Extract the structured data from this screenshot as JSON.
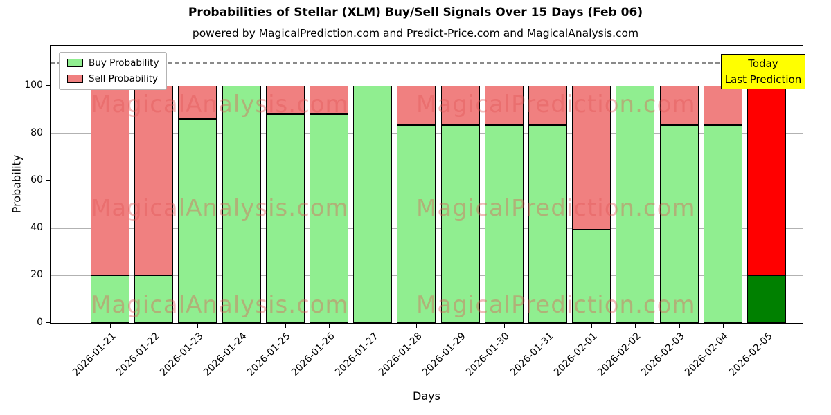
{
  "chart_data": {
    "type": "bar",
    "stacked": true,
    "title": "Probabilities of Stellar (XLM) Buy/Sell Signals Over 15 Days (Feb 06)",
    "subtitle": "powered by MagicalPrediction.com and Predict-Price.com and MagicalAnalysis.com",
    "xlabel": "Days",
    "ylabel": "Probability",
    "ylim": [
      0,
      117
    ],
    "yticks": [
      0,
      20,
      40,
      60,
      80,
      100
    ],
    "grid": true,
    "legend_position": "upper left",
    "dashed_line_y": 110,
    "categories": [
      "2026-01-21",
      "2026-01-22",
      "2026-01-23",
      "2026-01-24",
      "2026-01-25",
      "2026-01-26",
      "2026-01-27",
      "2026-01-28",
      "2026-01-29",
      "2026-01-30",
      "2026-01-31",
      "2026-02-01",
      "2026-02-02",
      "2026-02-03",
      "2026-02-04",
      "2026-02-05"
    ],
    "series": [
      {
        "name": "Buy Probability",
        "color": "#90EE90",
        "values": [
          20,
          20,
          86,
          100,
          88,
          88,
          100,
          83.33,
          83.33,
          83.33,
          83.33,
          39.5,
          100,
          83.33,
          83.33,
          20
        ]
      },
      {
        "name": "Sell Probability",
        "color": "#F08080",
        "values": [
          80,
          80,
          14,
          0,
          12,
          12,
          0,
          16.67,
          16.67,
          16.67,
          16.67,
          60.5,
          0,
          16.67,
          16.67,
          80
        ]
      }
    ],
    "today_bar": {
      "index": 15,
      "buy_color": "#008000",
      "sell_color": "#FF0000"
    }
  },
  "annotation": {
    "line1": "Today",
    "line2": "Last Prediction"
  },
  "watermarks": {
    "left_text": "MagicalAnalysis.com",
    "right_text": "MagicalPrediction.com",
    "color": "rgba(225, 85, 85, 0.40)"
  }
}
